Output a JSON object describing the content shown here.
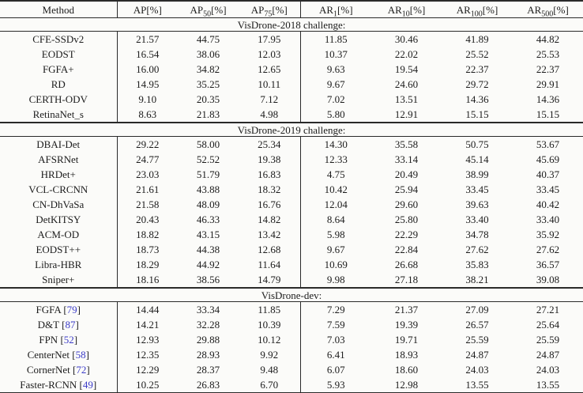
{
  "colors": {
    "text": "#1c1c1c",
    "rule": "#2a2a2a",
    "citation": "#3c3cc8",
    "background": "#fbfbf9"
  },
  "table": {
    "columns": [
      {
        "key": "method",
        "base": "Method",
        "sub": "",
        "suffix": ""
      },
      {
        "key": "ap",
        "base": "AP",
        "sub": "",
        "suffix": "[%]"
      },
      {
        "key": "ap50",
        "base": "AP",
        "sub": "50",
        "suffix": "[%]"
      },
      {
        "key": "ap75",
        "base": "AP",
        "sub": "75",
        "suffix": "[%]"
      },
      {
        "key": "ar1",
        "base": "AR",
        "sub": "1",
        "suffix": "[%]"
      },
      {
        "key": "ar10",
        "base": "AR",
        "sub": "10",
        "suffix": "[%]"
      },
      {
        "key": "ar100",
        "base": "AR",
        "sub": "100",
        "suffix": "[%]"
      },
      {
        "key": "ar500",
        "base": "AR",
        "sub": "500",
        "suffix": "[%]"
      }
    ],
    "sections": [
      {
        "title": "VisDrone-2018 challenge:",
        "rows": [
          {
            "method": "CFE-SSDv2",
            "citation": null,
            "values": [
              "21.57",
              "44.75",
              "17.95",
              "11.85",
              "30.46",
              "41.89",
              "44.82"
            ],
            "bold": [
              0,
              1,
              2,
              3,
              4,
              5,
              6
            ]
          },
          {
            "method": "EODST",
            "citation": null,
            "values": [
              "16.54",
              "38.06",
              "12.03",
              "10.37",
              "22.02",
              "25.52",
              "25.53"
            ],
            "bold": []
          },
          {
            "method": "FGFA+",
            "citation": null,
            "values": [
              "16.00",
              "34.82",
              "12.65",
              "9.63",
              "19.54",
              "22.37",
              "22.37"
            ],
            "bold": []
          },
          {
            "method": "RD",
            "citation": null,
            "values": [
              "14.95",
              "35.25",
              "10.11",
              "9.67",
              "24.60",
              "29.72",
              "29.91"
            ],
            "bold": []
          },
          {
            "method": "CERTH-ODV",
            "citation": null,
            "values": [
              "9.10",
              "20.35",
              "7.12",
              "7.02",
              "13.51",
              "14.36",
              "14.36"
            ],
            "bold": []
          },
          {
            "method": "RetinaNet_s",
            "citation": null,
            "values": [
              "8.63",
              "21.83",
              "4.98",
              "5.80",
              "12.91",
              "15.15",
              "15.15"
            ],
            "bold": []
          }
        ]
      },
      {
        "title": "VisDrone-2019 challenge:",
        "rows": [
          {
            "method": "DBAI-Det",
            "citation": null,
            "values": [
              "29.22",
              "58.00",
              "25.34",
              "14.30",
              "35.58",
              "50.75",
              "53.67"
            ],
            "bold": [
              0,
              1,
              2,
              3,
              4,
              5,
              6
            ]
          },
          {
            "method": "AFSRNet",
            "citation": null,
            "values": [
              "24.77",
              "52.52",
              "19.38",
              "12.33",
              "33.14",
              "45.14",
              "45.69"
            ],
            "bold": []
          },
          {
            "method": "HRDet+",
            "citation": null,
            "values": [
              "23.03",
              "51.79",
              "16.83",
              "4.75",
              "20.49",
              "38.99",
              "40.37"
            ],
            "bold": []
          },
          {
            "method": "VCL-CRCNN",
            "citation": null,
            "values": [
              "21.61",
              "43.88",
              "18.32",
              "10.42",
              "25.94",
              "33.45",
              "33.45"
            ],
            "bold": []
          },
          {
            "method": "CN-DhVaSa",
            "citation": null,
            "values": [
              "21.58",
              "48.09",
              "16.76",
              "12.04",
              "29.60",
              "39.63",
              "40.42"
            ],
            "bold": []
          },
          {
            "method": "DetKITSY",
            "citation": null,
            "values": [
              "20.43",
              "46.33",
              "14.82",
              "8.64",
              "25.80",
              "33.40",
              "33.40"
            ],
            "bold": []
          },
          {
            "method": "ACM-OD",
            "citation": null,
            "values": [
              "18.82",
              "43.15",
              "13.42",
              "5.98",
              "22.29",
              "34.78",
              "35.92"
            ],
            "bold": []
          },
          {
            "method": "EODST++",
            "citation": null,
            "values": [
              "18.73",
              "44.38",
              "12.68",
              "9.67",
              "22.84",
              "27.62",
              "27.62"
            ],
            "bold": []
          },
          {
            "method": "Libra-HBR",
            "citation": null,
            "values": [
              "18.29",
              "44.92",
              "11.64",
              "10.69",
              "26.68",
              "35.83",
              "36.57"
            ],
            "bold": []
          },
          {
            "method": "Sniper+",
            "citation": null,
            "values": [
              "18.16",
              "38.56",
              "14.79",
              "9.98",
              "27.18",
              "38.21",
              "39.08"
            ],
            "bold": []
          }
        ]
      },
      {
        "title": "VisDrone-dev:",
        "rows": [
          {
            "method": "FGFA",
            "citation": "79",
            "values": [
              "14.44",
              "33.34",
              "11.85",
              "7.29",
              "21.37",
              "27.09",
              "27.21"
            ],
            "bold": [
              0,
              1,
              2,
              4,
              5,
              6
            ]
          },
          {
            "method": "D&T",
            "citation": "87",
            "values": [
              "14.21",
              "32.28",
              "10.39",
              "7.59",
              "19.39",
              "26.57",
              "25.64"
            ],
            "bold": [
              3
            ]
          },
          {
            "method": "FPN",
            "citation": "52",
            "values": [
              "12.93",
              "29.88",
              "10.12",
              "7.03",
              "19.71",
              "25.59",
              "25.59"
            ],
            "bold": []
          },
          {
            "method": "CenterNet",
            "citation": "58",
            "values": [
              "12.35",
              "28.93",
              "9.92",
              "6.41",
              "18.93",
              "24.87",
              "24.87"
            ],
            "bold": []
          },
          {
            "method": "CornerNet",
            "citation": "72",
            "values": [
              "12.29",
              "28.37",
              "9.48",
              "6.07",
              "18.60",
              "24.03",
              "24.03"
            ],
            "bold": []
          },
          {
            "method": "Faster-RCNN",
            "citation": "49",
            "values": [
              "10.25",
              "26.83",
              "6.70",
              "5.93",
              "12.98",
              "13.55",
              "13.55"
            ],
            "bold": []
          }
        ]
      }
    ]
  }
}
